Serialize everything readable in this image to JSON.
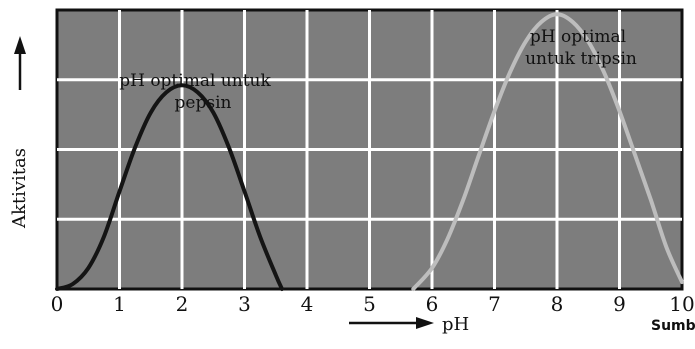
{
  "chart_data": {
    "type": "line",
    "xlabel": "pH",
    "ylabel": "Aktivitas",
    "xlim": [
      0,
      10
    ],
    "ylim": [
      0,
      4
    ],
    "xticks": [
      "0",
      "1",
      "2",
      "3",
      "4",
      "5",
      "6",
      "7",
      "8",
      "9",
      "10"
    ],
    "grid": true,
    "series": [
      {
        "color": "#141414",
        "x": [
          0,
          0.25,
          0.5,
          0.75,
          1,
          1.25,
          1.5,
          1.75,
          2,
          2.25,
          2.5,
          2.75,
          3,
          3.25,
          3.5,
          3.6
        ],
        "y": [
          0.0,
          0.07,
          0.3,
          0.75,
          1.4,
          2.03,
          2.53,
          2.82,
          2.92,
          2.82,
          2.53,
          2.03,
          1.4,
          0.75,
          0.2,
          0.0
        ]
      },
      {
        "color": "#bdbdbd",
        "x": [
          5.7,
          6,
          6.25,
          6.5,
          6.75,
          7,
          7.25,
          7.5,
          7.75,
          8,
          8.25,
          8.5,
          8.75,
          9,
          9.25,
          9.5,
          9.75,
          10
        ],
        "y": [
          0.0,
          0.3,
          0.72,
          1.28,
          1.92,
          2.55,
          3.11,
          3.55,
          3.83,
          3.94,
          3.83,
          3.55,
          3.11,
          2.55,
          1.92,
          1.28,
          0.6,
          0.1
        ]
      }
    ],
    "annotations": [
      {
        "lines": [
          "pH optimal untuk",
          "pepsin"
        ]
      },
      {
        "lines": [
          "pH optimal",
          "untuk tripsin"
        ]
      }
    ]
  },
  "source_label": "Sumbe"
}
